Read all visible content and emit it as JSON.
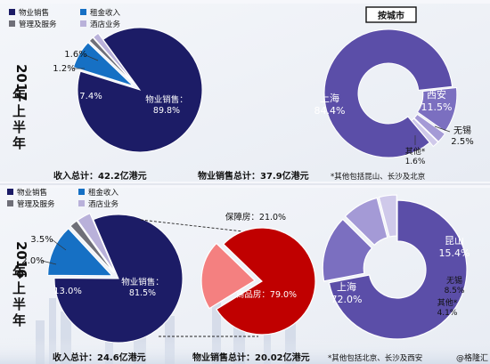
{
  "colors": {
    "navy": "#1c1c66",
    "blue": "#1670c4",
    "gray": "#6f6f78",
    "lavender": "#b9b1da",
    "purple": "#5b4ea8",
    "purple_light": "#7b6fc0",
    "red": "#c00000",
    "pink": "#f48080"
  },
  "legend_top": [
    {
      "label": "物业销售",
      "color": "#1c1c66"
    },
    {
      "label": "租金收入",
      "color": "#1670c4"
    },
    {
      "label": "管理及服务",
      "color": "#6f6f78"
    },
    {
      "label": "酒店业务",
      "color": "#b9b1da"
    }
  ],
  "legend_bottom": [
    {
      "label": "物业销售",
      "color": "#1c1c66"
    },
    {
      "label": "租金收入",
      "color": "#1670c4"
    },
    {
      "label": "管理及服务",
      "color": "#6f6f78"
    },
    {
      "label": "酒店业务",
      "color": "#b9b1da"
    }
  ],
  "year_2017": "2017年上半年",
  "year_2016": "2016年上半年",
  "city_box": "按城市",
  "totals_2017": {
    "revenue": "收入总计：42.2亿港元",
    "sales": "物业销售总计：37.9亿港元"
  },
  "totals_2016": {
    "revenue": "收入总计：24.6亿港元",
    "sales": "物业销售总计：20.02亿港元"
  },
  "notes": {
    "top": "*其他包括昆山、长沙及北京",
    "bottom": "*其他包括北京、长沙及西安"
  },
  "watermark": "@格隆汇",
  "chart_data": [
    {
      "type": "pie",
      "period": "2017年上半年",
      "categories": [
        "物业销售",
        "租金收入",
        "管理及服务",
        "酒店业务"
      ],
      "values": [
        89.8,
        7.4,
        1.2,
        1.6
      ],
      "labels": [
        "物业销售：\n89.8%",
        "7.4%",
        "1.2%",
        "1.6%"
      ],
      "colors": [
        "#1c1c66",
        "#1670c4",
        "#6f6f78",
        "#b9b1da"
      ]
    },
    {
      "type": "pie",
      "period": "2017年上半年",
      "categories": [
        "上海",
        "西安",
        "无锡",
        "其他*"
      ],
      "values": [
        84.4,
        11.5,
        2.5,
        1.6
      ],
      "labels": [
        "上海\n84.4%",
        "西安\n11.5%",
        "无锡\n2.5%",
        "其他*\n1.6%"
      ],
      "colors": [
        "#5b4ea8",
        "#7b6fc0",
        "#a49ad6",
        "#cfc9ea"
      ]
    },
    {
      "type": "pie",
      "period": "2016年上半年",
      "categories": [
        "物业销售",
        "租金收入",
        "管理及服务",
        "酒店业务"
      ],
      "values": [
        81.5,
        13.0,
        2.0,
        3.5
      ],
      "labels": [
        "物业销售：\n81.5%",
        "13.0%",
        "2.0%",
        "3.5%"
      ],
      "colors": [
        "#1c1c66",
        "#1670c4",
        "#6f6f78",
        "#b9b1da"
      ]
    },
    {
      "type": "pie",
      "period": "2016年上半年",
      "categories": [
        "商品房",
        "保障房"
      ],
      "values": [
        79.0,
        21.0
      ],
      "labels": [
        "商品房：79.0%",
        "保障房：21.0%"
      ],
      "colors": [
        "#c00000",
        "#f48080"
      ]
    },
    {
      "type": "pie",
      "period": "2016年上半年",
      "categories": [
        "上海",
        "昆山",
        "无锡",
        "其他*"
      ],
      "values": [
        72.0,
        15.4,
        8.5,
        4.1
      ],
      "labels": [
        "上海\n72.0%",
        "昆山\n15.4%",
        "无锡\n8.5%",
        "其他*\n4.1%"
      ],
      "colors": [
        "#5b4ea8",
        "#7b6fc0",
        "#a49ad6",
        "#cfc9ea"
      ]
    }
  ]
}
